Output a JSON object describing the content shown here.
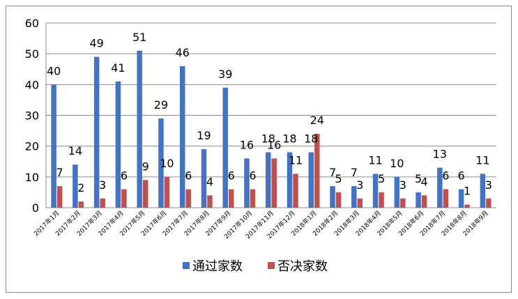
{
  "chart_data": {
    "type": "bar",
    "categories": [
      "2017年1月",
      "2017年2月",
      "2017年3月",
      "2017年4月",
      "2017年5月",
      "2017年6月",
      "2017年7月",
      "2017年8月",
      "2017年9月",
      "2017年10月",
      "2017年11月",
      "2017年12月",
      "2018年1月",
      "2018年2月",
      "2018年3月",
      "2018年4月",
      "2018年5月",
      "2018年6月",
      "2018年7月",
      "2018年8月",
      "2018年9月"
    ],
    "series": [
      {
        "name": "通过家数",
        "color": "#4472C4",
        "values": [
          40,
          14,
          49,
          41,
          51,
          29,
          46,
          19,
          39,
          16,
          18,
          18,
          18,
          7,
          7,
          11,
          10,
          5,
          13,
          6,
          11
        ]
      },
      {
        "name": "否决家数",
        "color": "#C0504D",
        "values": [
          7,
          2,
          3,
          6,
          9,
          10,
          6,
          4,
          6,
          6,
          16,
          11,
          24,
          5,
          3,
          5,
          3,
          4,
          6,
          1,
          3
        ]
      }
    ],
    "ylim": [
      0,
      60
    ],
    "yticks": [
      0,
      10,
      20,
      30,
      40,
      50,
      60
    ],
    "grid": true,
    "legend_position": "bottom"
  }
}
